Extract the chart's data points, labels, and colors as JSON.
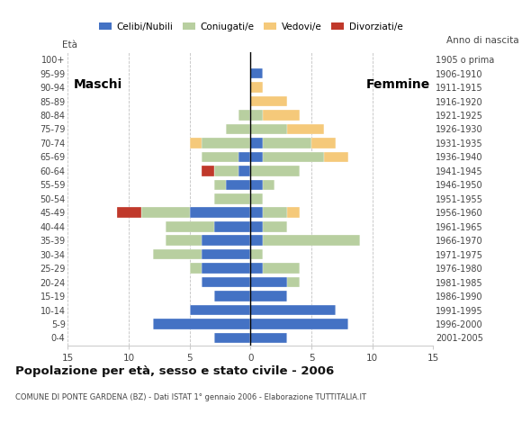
{
  "age_groups": [
    "0-4",
    "5-9",
    "10-14",
    "15-19",
    "20-24",
    "25-29",
    "30-34",
    "35-39",
    "40-44",
    "45-49",
    "50-54",
    "55-59",
    "60-64",
    "65-69",
    "70-74",
    "75-79",
    "80-84",
    "85-89",
    "90-94",
    "95-99",
    "100+"
  ],
  "birth_years": [
    "2001-2005",
    "1996-2000",
    "1991-1995",
    "1986-1990",
    "1981-1985",
    "1976-1980",
    "1971-1975",
    "1966-1970",
    "1961-1965",
    "1956-1960",
    "1951-1955",
    "1946-1950",
    "1941-1945",
    "1936-1940",
    "1931-1935",
    "1926-1930",
    "1921-1925",
    "1916-1920",
    "1911-1915",
    "1906-1910",
    "1905 o prima"
  ],
  "colors": {
    "celibi": "#4472c4",
    "coniugati": "#b8cfa0",
    "vedovi": "#f5c97a",
    "divorziati": "#c0392b"
  },
  "maschi": {
    "celibi": [
      3,
      8,
      5,
      3,
      4,
      4,
      4,
      4,
      3,
      5,
      0,
      2,
      1,
      1,
      0,
      0,
      0,
      0,
      0,
      0,
      0
    ],
    "coniugati": [
      0,
      0,
      0,
      0,
      0,
      1,
      4,
      3,
      4,
      4,
      3,
      1,
      2,
      3,
      4,
      2,
      1,
      0,
      0,
      0,
      0
    ],
    "vedovi": [
      0,
      0,
      0,
      0,
      0,
      0,
      0,
      0,
      0,
      0,
      0,
      0,
      0,
      0,
      1,
      0,
      0,
      0,
      0,
      0,
      0
    ],
    "divorziati": [
      0,
      0,
      0,
      0,
      0,
      0,
      0,
      0,
      0,
      2,
      0,
      0,
      1,
      0,
      0,
      0,
      0,
      0,
      0,
      0,
      0
    ]
  },
  "femmine": {
    "celibi": [
      3,
      8,
      7,
      3,
      3,
      1,
      0,
      1,
      1,
      1,
      0,
      1,
      0,
      1,
      1,
      0,
      0,
      0,
      0,
      1,
      0
    ],
    "coniugati": [
      0,
      0,
      0,
      0,
      1,
      3,
      1,
      8,
      2,
      2,
      1,
      1,
      4,
      5,
      4,
      3,
      1,
      0,
      0,
      0,
      0
    ],
    "vedovi": [
      0,
      0,
      0,
      0,
      0,
      0,
      0,
      0,
      0,
      1,
      0,
      0,
      0,
      2,
      2,
      3,
      3,
      3,
      1,
      0,
      0
    ],
    "divorziati": [
      0,
      0,
      0,
      0,
      0,
      0,
      0,
      0,
      0,
      0,
      0,
      0,
      0,
      0,
      0,
      0,
      0,
      0,
      0,
      0,
      0
    ]
  },
  "title": "Popolazione per età, sesso e stato civile - 2006",
  "subtitle": "COMUNE DI PONTE GARDENA (BZ) - Dati ISTAT 1° gennaio 2006 - Elaborazione TUTTITALIA.IT",
  "xlabel_left": "Maschi",
  "xlabel_right": "Femmine",
  "ylabel_left": "Età",
  "ylabel_right": "Anno di nascita",
  "xlim": 15,
  "legend_labels": [
    "Celibi/Nubili",
    "Coniugati/e",
    "Vedovi/e",
    "Divorziati/e"
  ],
  "bg_color": "#ffffff",
  "bar_height": 0.75
}
